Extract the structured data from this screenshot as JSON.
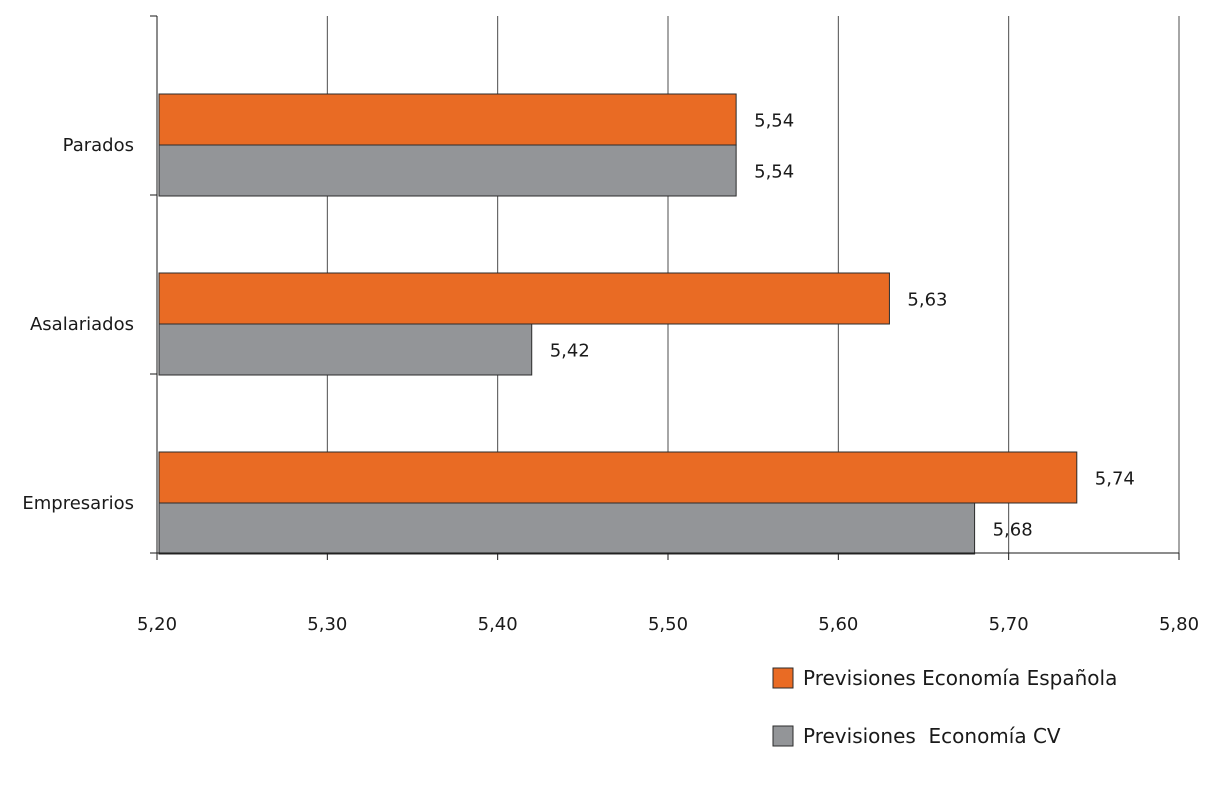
{
  "chart_data": {
    "type": "bar",
    "orientation": "horizontal",
    "title": "",
    "xlabel": "",
    "ylabel": "",
    "categories": [
      "Parados",
      "Asalariados",
      "Empresarios"
    ],
    "series": [
      {
        "name": "Previsiones Economía Española",
        "color": "#e96b24",
        "values": [
          5.54,
          5.63,
          5.74
        ],
        "labels": [
          "5,54",
          "5,63",
          "5,74"
        ]
      },
      {
        "name": "Previsiones  Economía CV",
        "color": "#939598",
        "values": [
          5.54,
          5.42,
          5.68
        ],
        "labels": [
          "5,54",
          "5,42",
          "5,68"
        ]
      }
    ],
    "xlim": [
      5.2,
      5.8
    ],
    "xticks": [
      5.2,
      5.3,
      5.4,
      5.5,
      5.6,
      5.7,
      5.8
    ],
    "xtick_labels": [
      "5,20",
      "5,30",
      "5,40",
      "5,50",
      "5,60",
      "5,70",
      "5,80"
    ],
    "grid": "vertical",
    "legend": "bottom-right"
  }
}
